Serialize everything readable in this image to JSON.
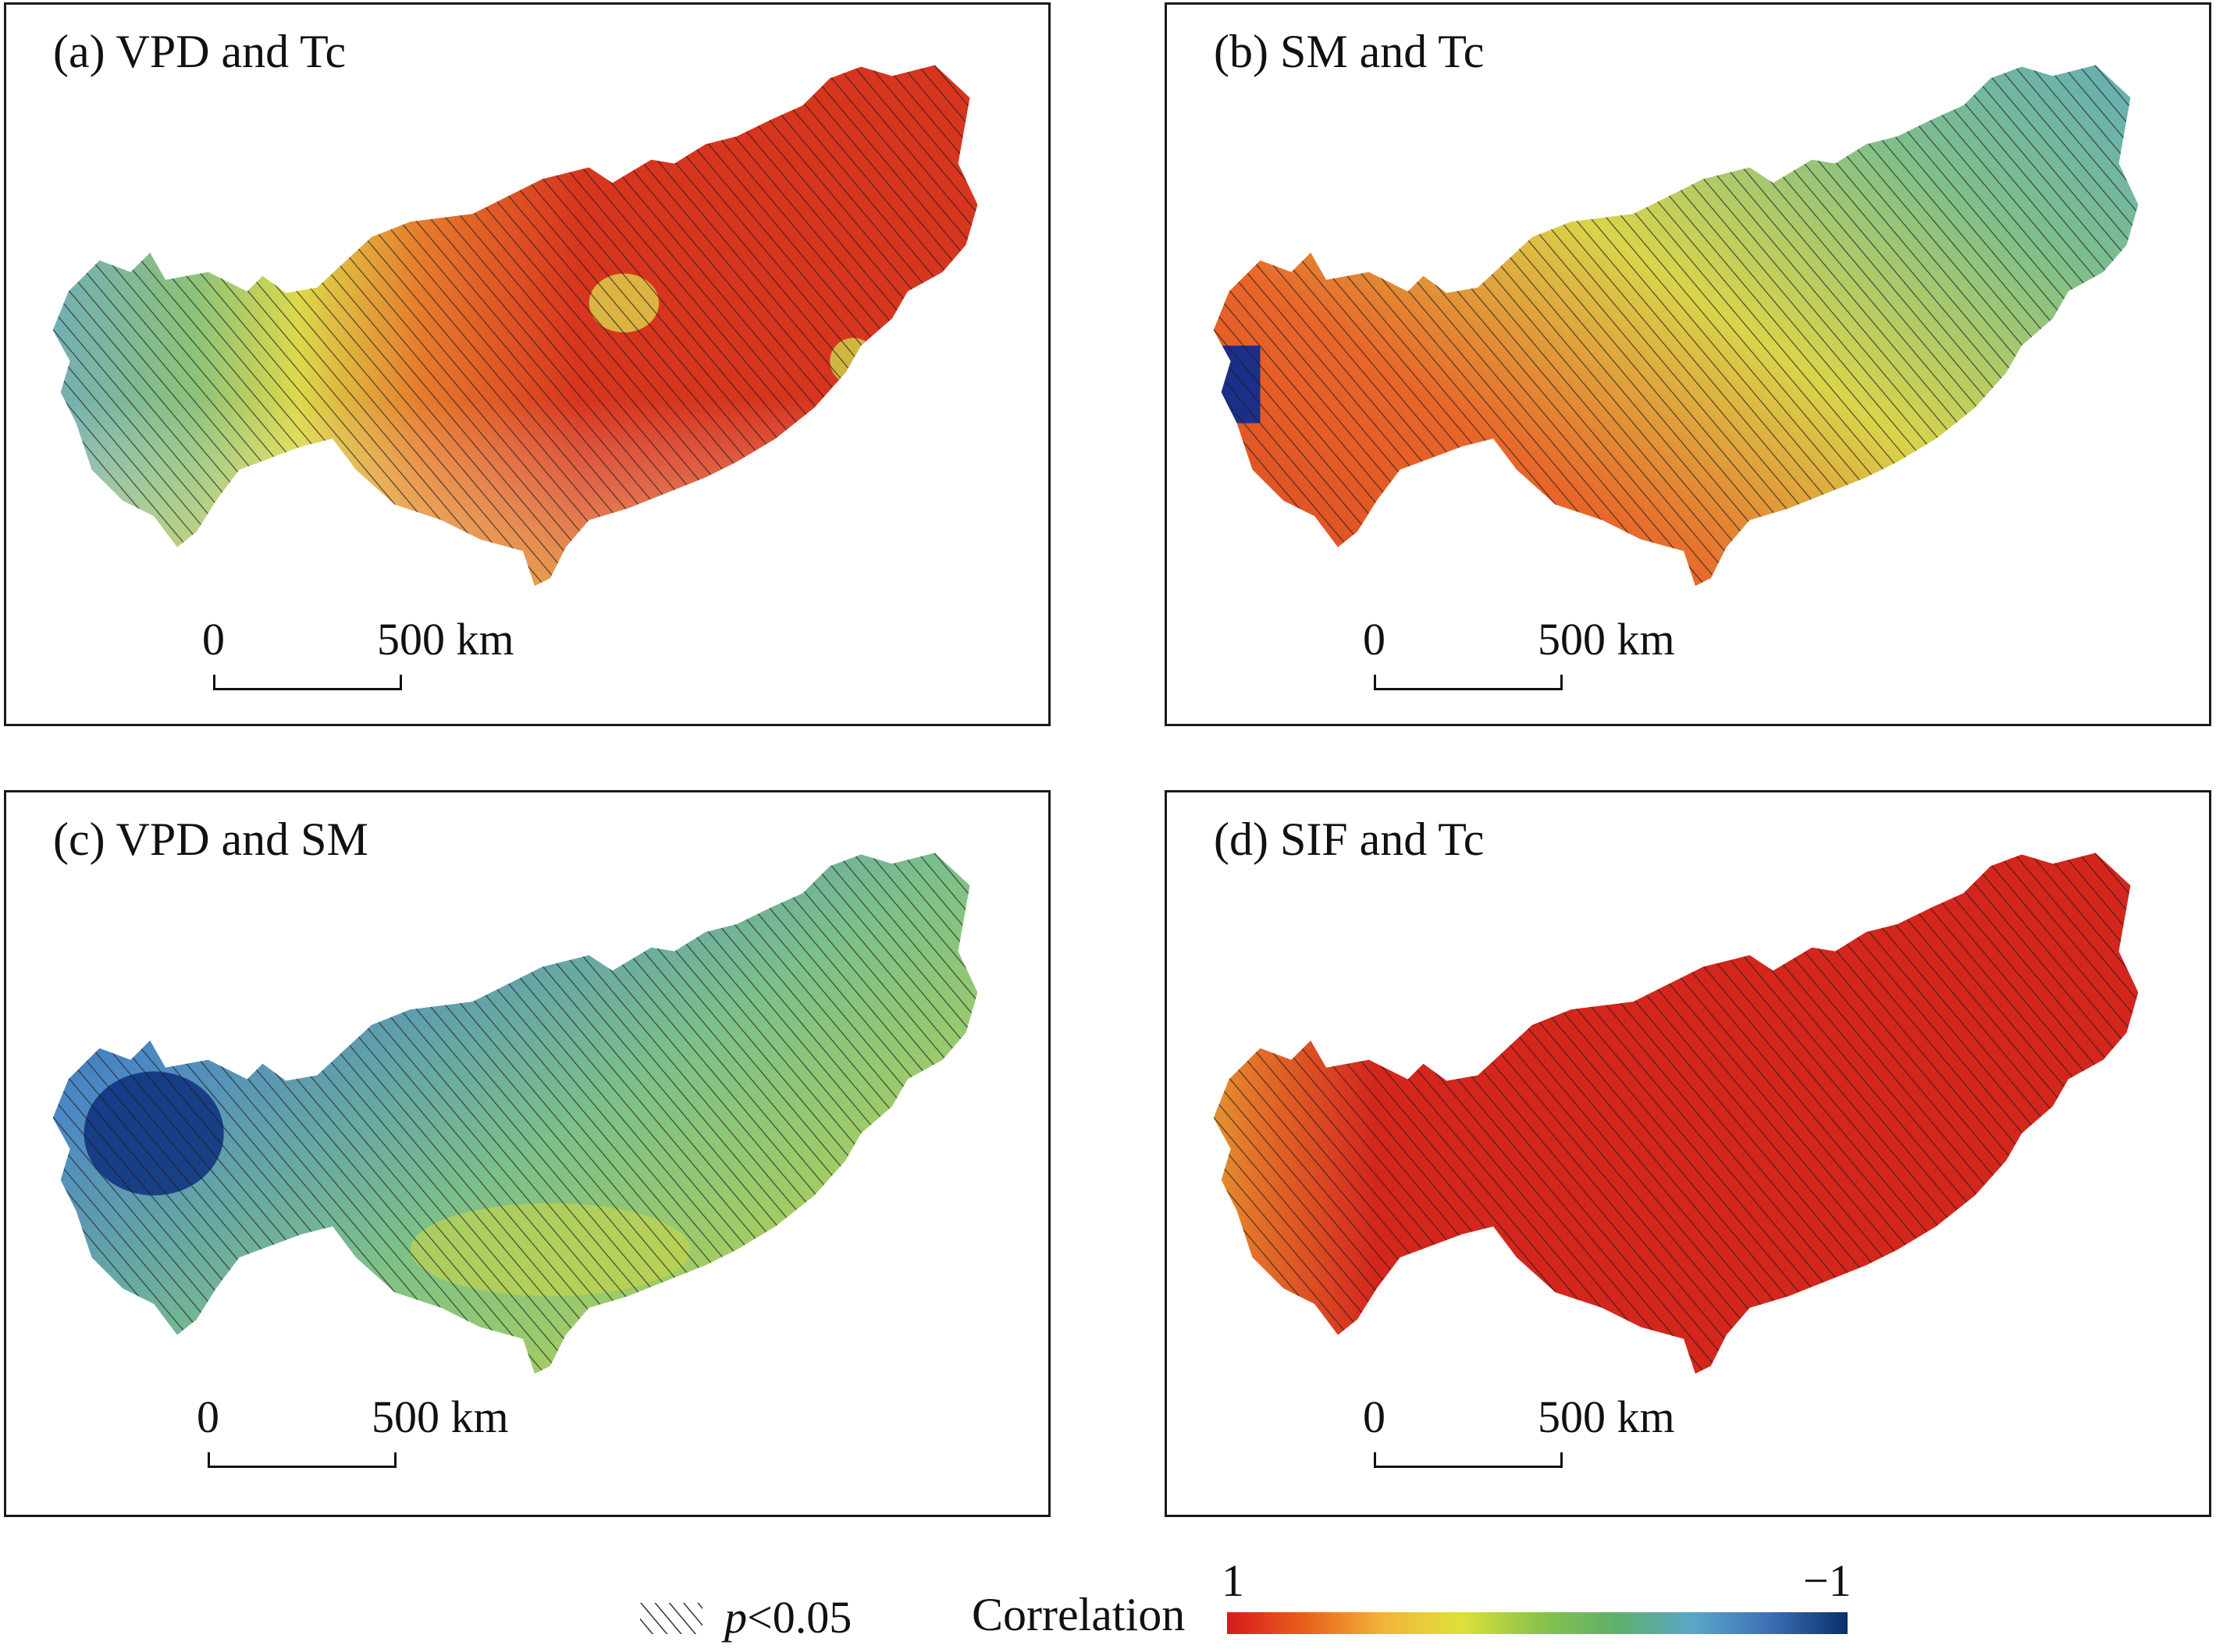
{
  "panels": [
    {
      "id": "a",
      "title": "(a) VPD and Tc",
      "theme": "warm"
    },
    {
      "id": "b",
      "title": "(b) SM and Tc",
      "theme": "gradient"
    },
    {
      "id": "c",
      "title": "(c) VPD and SM",
      "theme": "cool"
    },
    {
      "id": "d",
      "title": "(d) SIF and Tc",
      "theme": "red"
    }
  ],
  "scale_bar": {
    "zero": "0",
    "distance": "500 km"
  },
  "legend": {
    "significance": "p<0.05",
    "significance_symbol": "p",
    "significance_rest": "<0.05",
    "colorbar_label": "Correlation",
    "colorbar_max": "1",
    "colorbar_min": "−1",
    "colorbar_colors": [
      "#d7191c",
      "#e8601c",
      "#f2b33a",
      "#dfe13a",
      "#8cc34a",
      "#5fb06a",
      "#5aa7c8",
      "#3b6fb5",
      "#08306b"
    ]
  }
}
